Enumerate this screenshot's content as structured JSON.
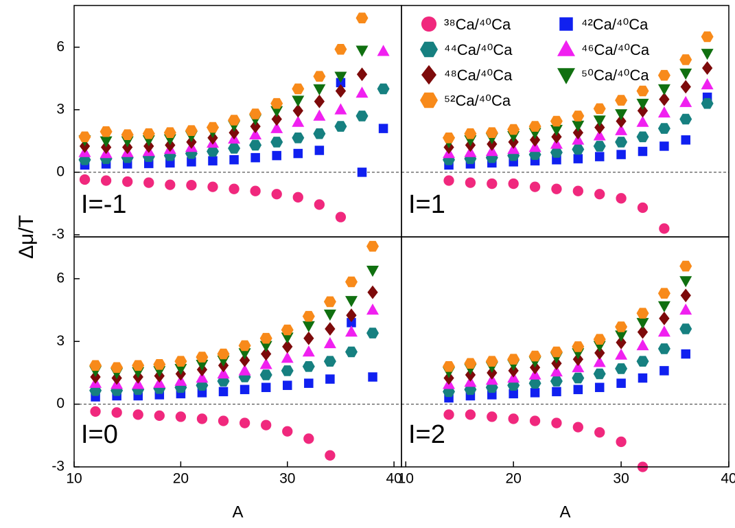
{
  "chart_data": [
    {
      "type": "scatter",
      "panel_label": "I=-1",
      "xlim": [
        10,
        40.7
      ],
      "ylim": [
        -3.1,
        8
      ],
      "yticks": [
        -3,
        0,
        3,
        6
      ],
      "ylabel": "Δμ/T",
      "series": [
        {
          "color": "#f0287d",
          "marker": "circle",
          "x": [
            11,
            13,
            15,
            17,
            19,
            21,
            23,
            25,
            27,
            29,
            31,
            33,
            35
          ],
          "values": [
            -0.35,
            -0.4,
            -0.45,
            -0.5,
            -0.6,
            -0.62,
            -0.7,
            -0.8,
            -0.9,
            -1.05,
            -1.2,
            -1.55,
            -2.15
          ]
        },
        {
          "color": "#1020f0",
          "marker": "square",
          "x": [
            11,
            13,
            15,
            17,
            19,
            21,
            23,
            25,
            27,
            29,
            31,
            33,
            35,
            37,
            39
          ],
          "values": [
            0.35,
            0.4,
            0.4,
            0.42,
            0.45,
            0.5,
            0.55,
            0.6,
            0.7,
            0.8,
            0.9,
            1.05,
            4.3,
            0,
            2.1
          ]
        },
        {
          "color": "#168080",
          "marker": "hexagon",
          "x": [
            11,
            13,
            15,
            17,
            19,
            21,
            23,
            25,
            27,
            29,
            31,
            33,
            35,
            37,
            39
          ],
          "values": [
            0.6,
            0.65,
            0.7,
            0.75,
            0.8,
            0.9,
            1.0,
            1.15,
            1.3,
            1.45,
            1.65,
            1.85,
            2.2,
            2.7,
            4.0
          ]
        },
        {
          "color": "#f020f0",
          "marker": "triangle",
          "x": [
            11,
            13,
            15,
            17,
            19,
            21,
            23,
            25,
            27,
            29,
            31,
            33,
            35,
            37,
            39
          ],
          "values": [
            0.95,
            0.9,
            0.95,
            1.0,
            1.1,
            1.2,
            1.4,
            1.6,
            1.8,
            2.1,
            2.4,
            2.7,
            3.0,
            3.8,
            5.8
          ]
        },
        {
          "color": "#7d0a0a",
          "marker": "diamond",
          "x": [
            11,
            13,
            15,
            17,
            19,
            21,
            23,
            25,
            27,
            29,
            31,
            33,
            35,
            37
          ],
          "values": [
            1.25,
            1.2,
            1.2,
            1.25,
            1.3,
            1.45,
            1.65,
            1.9,
            2.2,
            2.55,
            2.95,
            3.4,
            3.9,
            4.7
          ]
        },
        {
          "color": "#107010",
          "marker": "triangle-down",
          "x": [
            11,
            13,
            15,
            17,
            19,
            21,
            23,
            25,
            27,
            29,
            31,
            33,
            35,
            37
          ],
          "values": [
            1.55,
            1.5,
            1.5,
            1.55,
            1.6,
            1.75,
            1.95,
            2.25,
            2.55,
            2.95,
            3.45,
            4.0,
            4.6,
            5.85
          ]
        },
        {
          "color": "#f88a1a",
          "marker": "hexagon",
          "x": [
            11,
            13,
            15,
            17,
            19,
            21,
            23,
            25,
            27,
            29,
            31,
            33,
            35,
            37
          ],
          "values": [
            1.7,
            1.95,
            1.8,
            1.85,
            1.9,
            2.0,
            2.15,
            2.5,
            2.8,
            3.3,
            4.0,
            4.6,
            5.9,
            7.4
          ]
        }
      ]
    },
    {
      "type": "scatter",
      "panel_label": "I=1",
      "xlim": [
        9.6,
        40
      ],
      "ylim": [
        -3.1,
        8
      ],
      "series": [
        {
          "name": "³⁸Ca/⁴⁰Ca",
          "color": "#f0287d",
          "marker": "circle",
          "x": [
            14,
            16,
            18,
            20,
            22,
            24,
            26,
            28,
            30,
            32,
            34
          ],
          "values": [
            -0.4,
            -0.5,
            -0.55,
            -0.55,
            -0.7,
            -0.8,
            -0.9,
            -1.05,
            -1.25,
            -1.7,
            -2.7
          ]
        },
        {
          "name": "⁴²Ca/⁴⁰Ca",
          "color": "#1020f0",
          "marker": "square",
          "x": [
            14,
            16,
            18,
            20,
            22,
            24,
            26,
            28,
            30,
            32,
            34,
            36,
            38
          ],
          "values": [
            0.35,
            0.4,
            0.45,
            0.5,
            0.55,
            0.6,
            0.65,
            0.75,
            0.85,
            1.0,
            1.25,
            1.55,
            3.6
          ]
        },
        {
          "name": "⁴⁴Ca/⁴⁰Ca",
          "color": "#168080",
          "marker": "hexagon",
          "x": [
            14,
            16,
            18,
            20,
            22,
            24,
            26,
            28,
            30,
            32,
            34,
            36,
            38
          ],
          "values": [
            0.6,
            0.65,
            0.7,
            0.8,
            0.85,
            0.95,
            1.1,
            1.25,
            1.45,
            1.7,
            2.1,
            2.55,
            3.3
          ]
        },
        {
          "name": "⁴⁶Ca/⁴⁰Ca",
          "color": "#f020f0",
          "marker": "triangle",
          "x": [
            14,
            16,
            18,
            20,
            22,
            24,
            26,
            28,
            30,
            32,
            34,
            36,
            38
          ],
          "values": [
            0.9,
            0.95,
            1.0,
            1.1,
            1.2,
            1.35,
            1.55,
            1.75,
            2.0,
            2.4,
            2.85,
            3.35,
            4.2
          ]
        },
        {
          "name": "⁴⁸Ca/⁴⁰Ca",
          "color": "#7d0a0a",
          "marker": "diamond",
          "x": [
            14,
            16,
            18,
            20,
            22,
            24,
            26,
            28,
            30,
            32,
            34,
            36,
            38
          ],
          "values": [
            1.2,
            1.3,
            1.35,
            1.45,
            1.55,
            1.7,
            1.9,
            2.15,
            2.45,
            2.95,
            3.5,
            4.1,
            5.0
          ]
        },
        {
          "name": "⁵⁰Ca/⁴⁰Ca",
          "color": "#107010",
          "marker": "triangle-down",
          "x": [
            14,
            16,
            18,
            20,
            22,
            24,
            26,
            28,
            30,
            32,
            34,
            36,
            38
          ],
          "values": [
            1.45,
            1.55,
            1.65,
            1.75,
            1.9,
            2.05,
            2.25,
            2.5,
            2.8,
            3.3,
            4.0,
            4.75,
            5.7
          ]
        },
        {
          "name": "⁵²Ca/⁴⁰Ca",
          "color": "#f88a1a",
          "marker": "hexagon",
          "x": [
            14,
            16,
            18,
            20,
            22,
            24,
            26,
            28,
            30,
            32,
            34,
            36,
            38
          ],
          "values": [
            1.65,
            1.85,
            1.9,
            2.05,
            2.2,
            2.45,
            2.7,
            3.05,
            3.45,
            3.9,
            4.65,
            5.4,
            6.5
          ]
        }
      ]
    },
    {
      "type": "scatter",
      "panel_label": "I=0",
      "xlim": [
        10,
        40.7
      ],
      "ylim": [
        -3,
        8
      ],
      "yticks": [
        -3,
        0,
        3,
        6
      ],
      "xticks": [
        10,
        20,
        30,
        40
      ],
      "xlabel": "A",
      "series": [
        {
          "color": "#f0287d",
          "marker": "circle",
          "x": [
            12,
            14,
            16,
            18,
            20,
            22,
            24,
            26,
            28,
            30,
            32,
            34
          ],
          "values": [
            -0.35,
            -0.4,
            -0.5,
            -0.55,
            -0.6,
            -0.7,
            -0.8,
            -0.9,
            -1.0,
            -1.3,
            -1.65,
            -2.45
          ]
        },
        {
          "color": "#1020f0",
          "marker": "square",
          "x": [
            12,
            14,
            16,
            18,
            20,
            22,
            24,
            26,
            28,
            30,
            32,
            34,
            36,
            38
          ],
          "values": [
            0.35,
            0.4,
            0.4,
            0.45,
            0.5,
            0.55,
            0.6,
            0.7,
            0.8,
            0.9,
            1.0,
            1.2,
            3.9,
            1.3
          ]
        },
        {
          "color": "#168080",
          "marker": "hexagon",
          "x": [
            12,
            14,
            16,
            18,
            20,
            22,
            24,
            26,
            28,
            30,
            32,
            34,
            36,
            38
          ],
          "values": [
            0.65,
            0.65,
            0.7,
            0.75,
            0.8,
            0.9,
            1.1,
            1.3,
            1.4,
            1.6,
            1.8,
            2.05,
            2.5,
            3.4
          ]
        },
        {
          "color": "#f020f0",
          "marker": "triangle",
          "x": [
            12,
            14,
            16,
            18,
            20,
            22,
            24,
            26,
            28,
            30,
            32,
            34,
            36,
            38
          ],
          "values": [
            1.0,
            0.95,
            0.95,
            1.0,
            1.1,
            1.25,
            1.45,
            1.6,
            1.9,
            2.2,
            2.5,
            2.9,
            3.45,
            4.5
          ]
        },
        {
          "color": "#7d0a0a",
          "marker": "diamond",
          "x": [
            12,
            14,
            16,
            18,
            20,
            22,
            24,
            26,
            28,
            30,
            32,
            34,
            36,
            38
          ],
          "values": [
            1.3,
            1.25,
            1.3,
            1.35,
            1.45,
            1.65,
            1.85,
            2.1,
            2.4,
            2.75,
            3.15,
            3.6,
            4.25,
            5.35
          ]
        },
        {
          "color": "#107010",
          "marker": "triangle-down",
          "x": [
            12,
            14,
            16,
            18,
            20,
            22,
            24,
            26,
            28,
            30,
            32,
            34,
            36,
            38
          ],
          "values": [
            1.6,
            1.5,
            1.55,
            1.6,
            1.7,
            1.9,
            2.1,
            2.45,
            2.8,
            3.2,
            3.75,
            4.3,
            4.95,
            6.4
          ]
        },
        {
          "color": "#f88a1a",
          "marker": "hexagon",
          "x": [
            12,
            14,
            16,
            18,
            20,
            22,
            24,
            26,
            28,
            30,
            32,
            34,
            36,
            38
          ],
          "values": [
            1.85,
            1.75,
            1.85,
            1.9,
            2.05,
            2.25,
            2.4,
            2.8,
            3.15,
            3.55,
            4.2,
            4.9,
            5.85,
            7.55
          ]
        }
      ]
    },
    {
      "type": "scatter",
      "panel_label": "I=2",
      "xlim": [
        9.6,
        40
      ],
      "ylim": [
        -3,
        8
      ],
      "xticks": [
        10,
        20,
        30,
        40
      ],
      "xlabel": "A",
      "series": [
        {
          "color": "#f0287d",
          "marker": "circle",
          "x": [
            14,
            16,
            18,
            20,
            22,
            24,
            26,
            28,
            30,
            32
          ],
          "values": [
            -0.5,
            -0.5,
            -0.6,
            -0.7,
            -0.8,
            -0.9,
            -1.1,
            -1.35,
            -1.8,
            -3.0
          ]
        },
        {
          "color": "#1020f0",
          "marker": "square",
          "x": [
            14,
            16,
            18,
            20,
            22,
            24,
            26,
            28,
            30,
            32,
            34,
            36
          ],
          "values": [
            0.3,
            0.4,
            0.45,
            0.5,
            0.55,
            0.6,
            0.7,
            0.8,
            1.0,
            1.25,
            1.6,
            2.4
          ]
        },
        {
          "color": "#168080",
          "marker": "hexagon",
          "x": [
            14,
            16,
            18,
            20,
            22,
            24,
            26,
            28,
            30,
            32,
            34,
            36
          ],
          "values": [
            0.6,
            0.7,
            0.8,
            0.9,
            1.0,
            1.1,
            1.25,
            1.45,
            1.7,
            2.05,
            2.65,
            3.6
          ]
        },
        {
          "color": "#f020f0",
          "marker": "triangle",
          "x": [
            14,
            16,
            18,
            20,
            22,
            24,
            26,
            28,
            30,
            32,
            34,
            36
          ],
          "values": [
            0.95,
            1.05,
            1.15,
            1.25,
            1.4,
            1.55,
            1.75,
            2.0,
            2.35,
            2.8,
            3.45,
            4.5
          ]
        },
        {
          "color": "#7d0a0a",
          "marker": "diamond",
          "x": [
            14,
            16,
            18,
            20,
            22,
            24,
            26,
            28,
            30,
            32,
            34,
            36
          ],
          "values": [
            1.25,
            1.4,
            1.5,
            1.6,
            1.75,
            1.95,
            2.15,
            2.45,
            2.95,
            3.45,
            4.1,
            5.2
          ]
        },
        {
          "color": "#107010",
          "marker": "triangle-down",
          "x": [
            14,
            16,
            18,
            20,
            22,
            24,
            26,
            28,
            30,
            32,
            34,
            36
          ],
          "values": [
            1.55,
            1.7,
            1.8,
            1.9,
            2.05,
            2.25,
            2.45,
            2.8,
            3.3,
            3.9,
            4.7,
            5.9
          ]
        },
        {
          "color": "#f88a1a",
          "marker": "hexagon",
          "x": [
            14,
            16,
            18,
            20,
            22,
            24,
            26,
            28,
            30,
            32,
            34,
            36
          ],
          "values": [
            1.8,
            1.95,
            2.05,
            2.15,
            2.3,
            2.5,
            2.75,
            3.1,
            3.7,
            4.35,
            5.3,
            6.6
          ]
        }
      ]
    }
  ]
}
